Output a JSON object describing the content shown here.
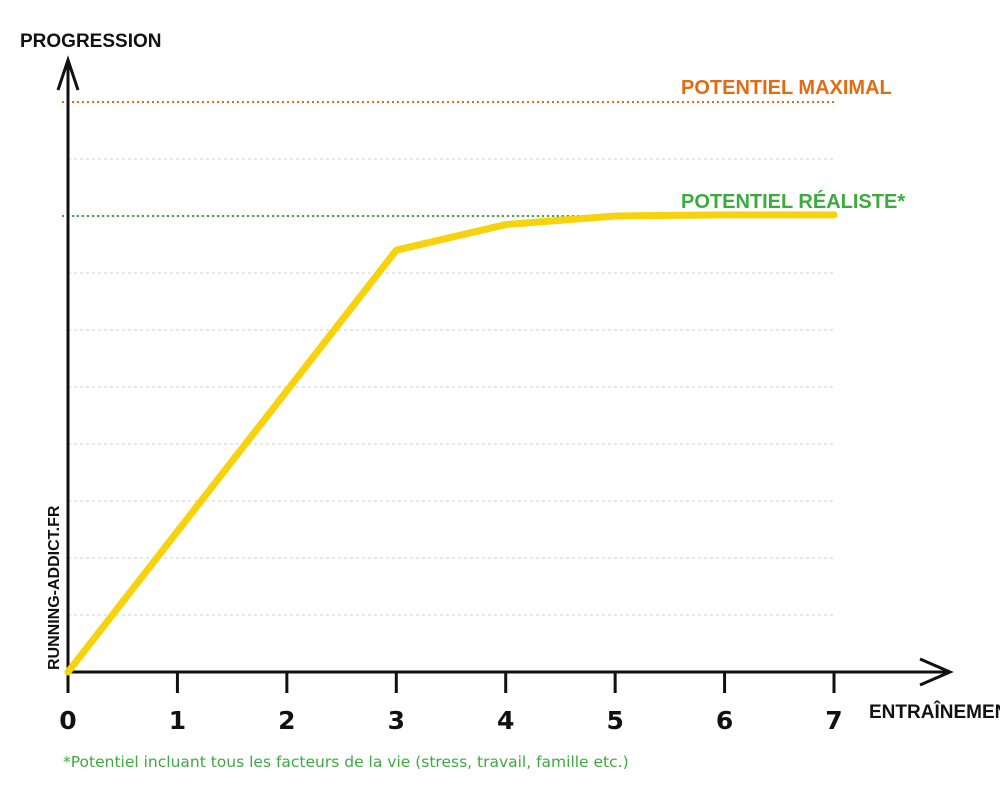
{
  "chart_data": {
    "type": "line",
    "ylabel": "PROGRESSION",
    "xlabel": "ENTRAÎNEMENT",
    "x_ticks": [
      "0",
      "1",
      "2",
      "3",
      "4",
      "5",
      "6",
      "7"
    ],
    "xlim": [
      0,
      7
    ],
    "ylim": [
      0,
      10
    ],
    "grid": true,
    "series": [
      {
        "x": [
          0,
          3,
          4,
          5,
          6,
          7
        ],
        "y": [
          0,
          7.4,
          7.85,
          8.0,
          8.02,
          8.02
        ]
      }
    ],
    "reference_lines": [
      {
        "label": "POTENTIEL MAXIMAL",
        "y": 10,
        "color": "#E36B10"
      },
      {
        "label": "POTENTIEL RÉALISTE*",
        "y": 8,
        "color": "#3DAA3F"
      }
    ],
    "line_color": "#F6D30C",
    "footnote": "*Potentiel incluant tous les facteurs de la vie (stress, travail, famille etc.)",
    "footnote_color": "#3DAA3F",
    "watermark": "RUNNING-ADDICT.FR"
  }
}
